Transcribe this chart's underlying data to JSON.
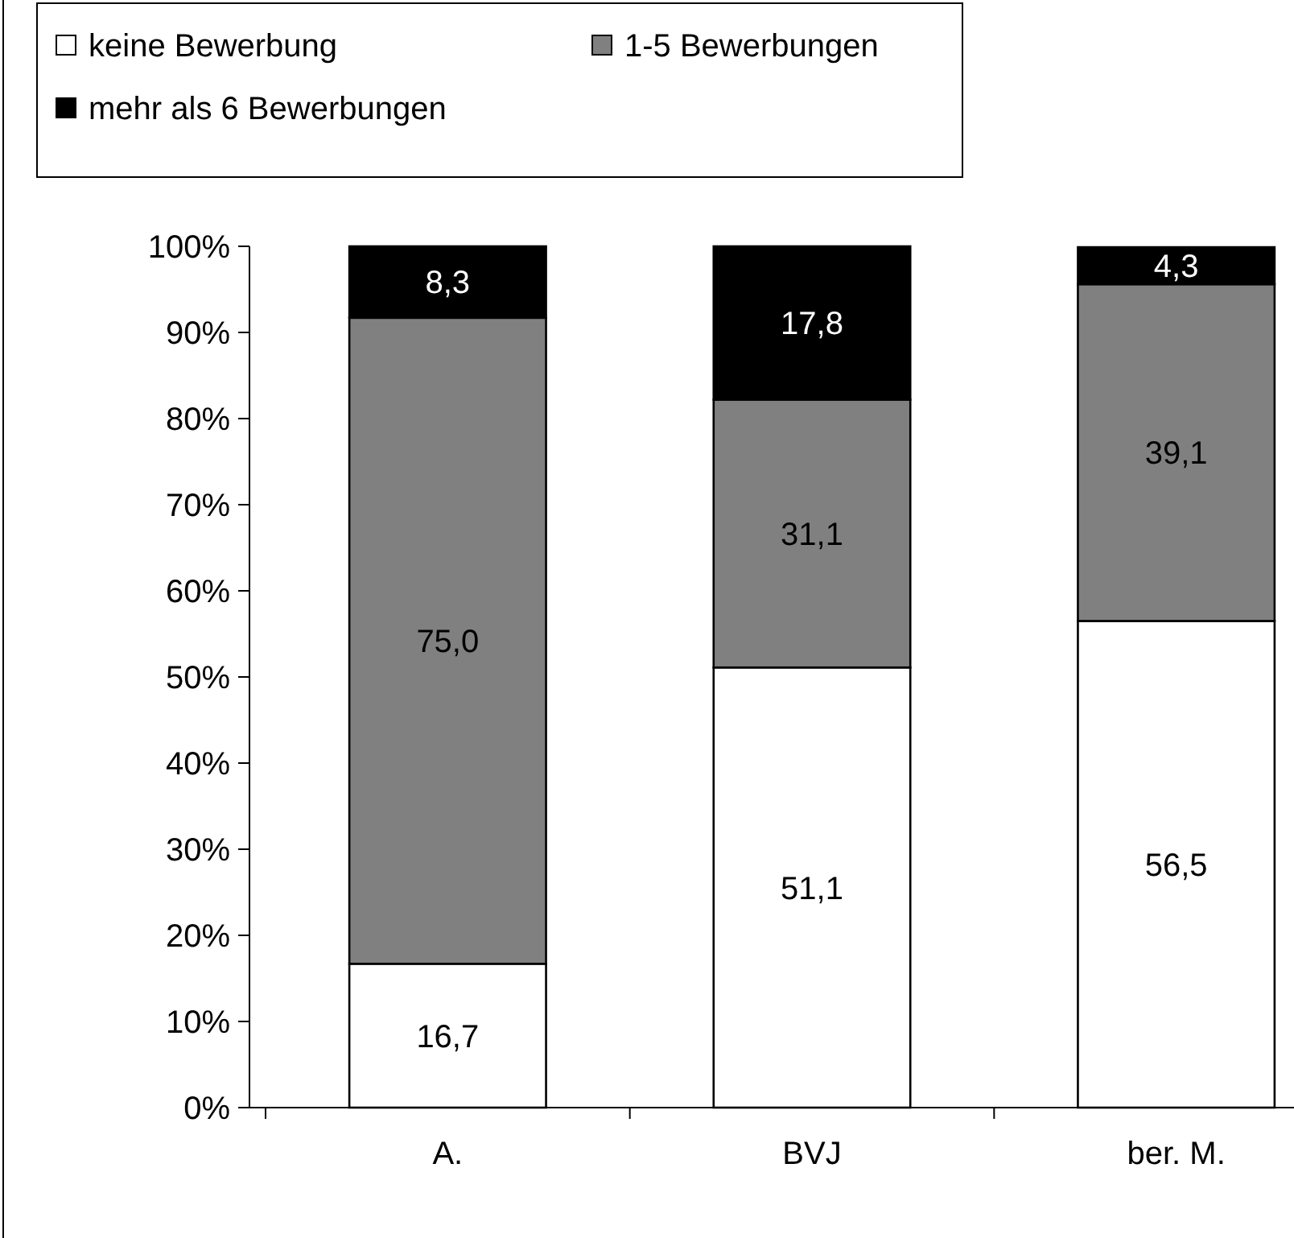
{
  "chart_data": {
    "type": "bar",
    "stacked": true,
    "categories": [
      "A.",
      "BVJ",
      "ber. M."
    ],
    "series": [
      {
        "name": "keine Bewerbung",
        "color": "#ffffff",
        "values": [
          16.7,
          51.1,
          56.5
        ],
        "value_labels": [
          "16,7",
          "51,1",
          "56,5"
        ]
      },
      {
        "name": "1-5 Bewerbungen",
        "color": "#808080",
        "values": [
          75.0,
          31.1,
          39.1
        ],
        "value_labels": [
          "75,0",
          "31,1",
          "39,1"
        ]
      },
      {
        "name": "mehr als 6 Bewerbungen",
        "color": "#000000",
        "values": [
          8.3,
          17.8,
          4.3
        ],
        "value_labels": [
          "8,3",
          "17,8",
          "4,3"
        ]
      }
    ],
    "ylim": [
      0,
      100
    ],
    "yticks": [
      {
        "value": 0,
        "label": "0%"
      },
      {
        "value": 10,
        "label": "10%"
      },
      {
        "value": 20,
        "label": "20%"
      },
      {
        "value": 30,
        "label": "30%"
      },
      {
        "value": 40,
        "label": "40%"
      },
      {
        "value": 50,
        "label": "50%"
      },
      {
        "value": 60,
        "label": "60%"
      },
      {
        "value": 70,
        "label": "70%"
      },
      {
        "value": 80,
        "label": "80%"
      },
      {
        "value": 90,
        "label": "90%"
      },
      {
        "value": 100,
        "label": "100%"
      }
    ],
    "legend": "top"
  }
}
